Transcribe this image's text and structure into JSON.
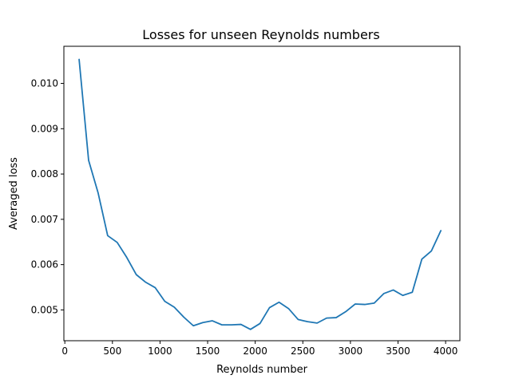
{
  "chart_data": {
    "type": "line",
    "title": "Losses for unseen Reynolds numbers",
    "xlabel": "Reynolds number",
    "ylabel": "Averaged loss",
    "xlim": [
      -10,
      4150
    ],
    "ylim": [
      0.00432,
      0.01082
    ],
    "x_ticks": [
      0,
      500,
      1000,
      1500,
      2000,
      2500,
      3000,
      3500,
      4000
    ],
    "y_ticks": [
      0.005,
      0.006,
      0.007,
      0.008,
      0.009,
      0.01
    ],
    "x_tick_labels": [
      "0",
      "500",
      "1000",
      "1500",
      "2000",
      "2500",
      "3000",
      "3500",
      "4000"
    ],
    "y_tick_labels": [
      "0.005",
      "0.006",
      "0.007",
      "0.008",
      "0.009",
      "0.010"
    ],
    "grid": false,
    "series": [
      {
        "color": "#1f77b4",
        "x": [
          150,
          250,
          350,
          450,
          550,
          650,
          750,
          850,
          950,
          1050,
          1150,
          1250,
          1350,
          1450,
          1550,
          1650,
          1750,
          1850,
          1950,
          2050,
          2150,
          2250,
          2350,
          2450,
          2550,
          2650,
          2750,
          2850,
          2950,
          3050,
          3150,
          3250,
          3350,
          3450,
          3550,
          3650,
          3750,
          3850,
          3950
        ],
        "y": [
          0.01053,
          0.0083,
          0.00758,
          0.00664,
          0.00649,
          0.00616,
          0.00578,
          0.00561,
          0.00549,
          0.00519,
          0.00506,
          0.00484,
          0.00465,
          0.00472,
          0.00476,
          0.00467,
          0.00467,
          0.00468,
          0.00457,
          0.0047,
          0.00505,
          0.00517,
          0.00503,
          0.00479,
          0.00474,
          0.00471,
          0.00482,
          0.00483,
          0.00496,
          0.00513,
          0.00512,
          0.00515,
          0.00536,
          0.00544,
          0.00532,
          0.00539,
          0.00612,
          0.0063,
          0.00675
        ]
      }
    ]
  }
}
